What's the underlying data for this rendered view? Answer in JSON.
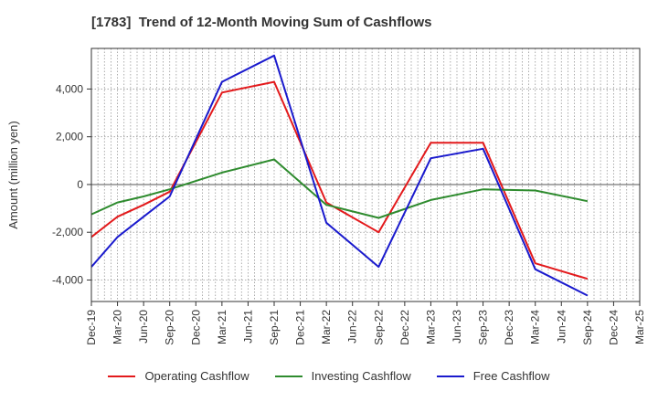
{
  "title": "[1783]  Trend of 12-Month Moving Sum of Cashflows",
  "colors": {
    "operating": "#e31a1c",
    "investing": "#2e8b2e",
    "free": "#1a1acd",
    "grid": "#999999",
    "frame": "#333333"
  },
  "chart_data": {
    "type": "line",
    "title": "[1783]  Trend of 12-Month Moving Sum of Cashflows",
    "xlabel": "",
    "ylabel": "Amount (million yen)",
    "categories": [
      "Dec-19",
      "Mar-20",
      "Jun-20",
      "Sep-20",
      "Dec-20",
      "Mar-21",
      "Jun-21",
      "Sep-21",
      "Dec-21",
      "Mar-22",
      "Jun-22",
      "Sep-22",
      "Dec-22",
      "Mar-23",
      "Jun-23",
      "Sep-23",
      "Dec-23",
      "Mar-24",
      "Jun-24",
      "Sep-24",
      "Dec-24",
      "Mar-25"
    ],
    "ylim": [
      -4900,
      5700
    ],
    "yticks": [
      -4000,
      -2000,
      0,
      2000,
      4000
    ],
    "ytick_labels": [
      "-4,000",
      "-2,000",
      "0",
      "2,000",
      "4,000"
    ],
    "grid": true,
    "legend_position": "bottom",
    "series": [
      {
        "name": "Operating Cashflow",
        "color": "#e31a1c",
        "values": [
          -2200,
          -1350,
          -850,
          -300,
          null,
          3850,
          null,
          4300,
          null,
          -750,
          null,
          -2000,
          null,
          1750,
          null,
          1750,
          null,
          -3300,
          null,
          -3950,
          null,
          null
        ]
      },
      {
        "name": "Investing Cashflow",
        "color": "#2e8b2e",
        "values": [
          -1250,
          -750,
          -500,
          -200,
          null,
          500,
          null,
          1050,
          null,
          -850,
          null,
          -1400,
          null,
          -650,
          null,
          -200,
          null,
          -250,
          null,
          -700,
          null,
          null
        ]
      },
      {
        "name": "Free Cashflow",
        "color": "#1a1acd",
        "values": [
          -3450,
          -2200,
          -1350,
          -500,
          null,
          4300,
          null,
          5400,
          null,
          -1600,
          null,
          -3450,
          null,
          1100,
          null,
          1500,
          null,
          -3550,
          null,
          -4650,
          null,
          null
        ]
      }
    ]
  }
}
